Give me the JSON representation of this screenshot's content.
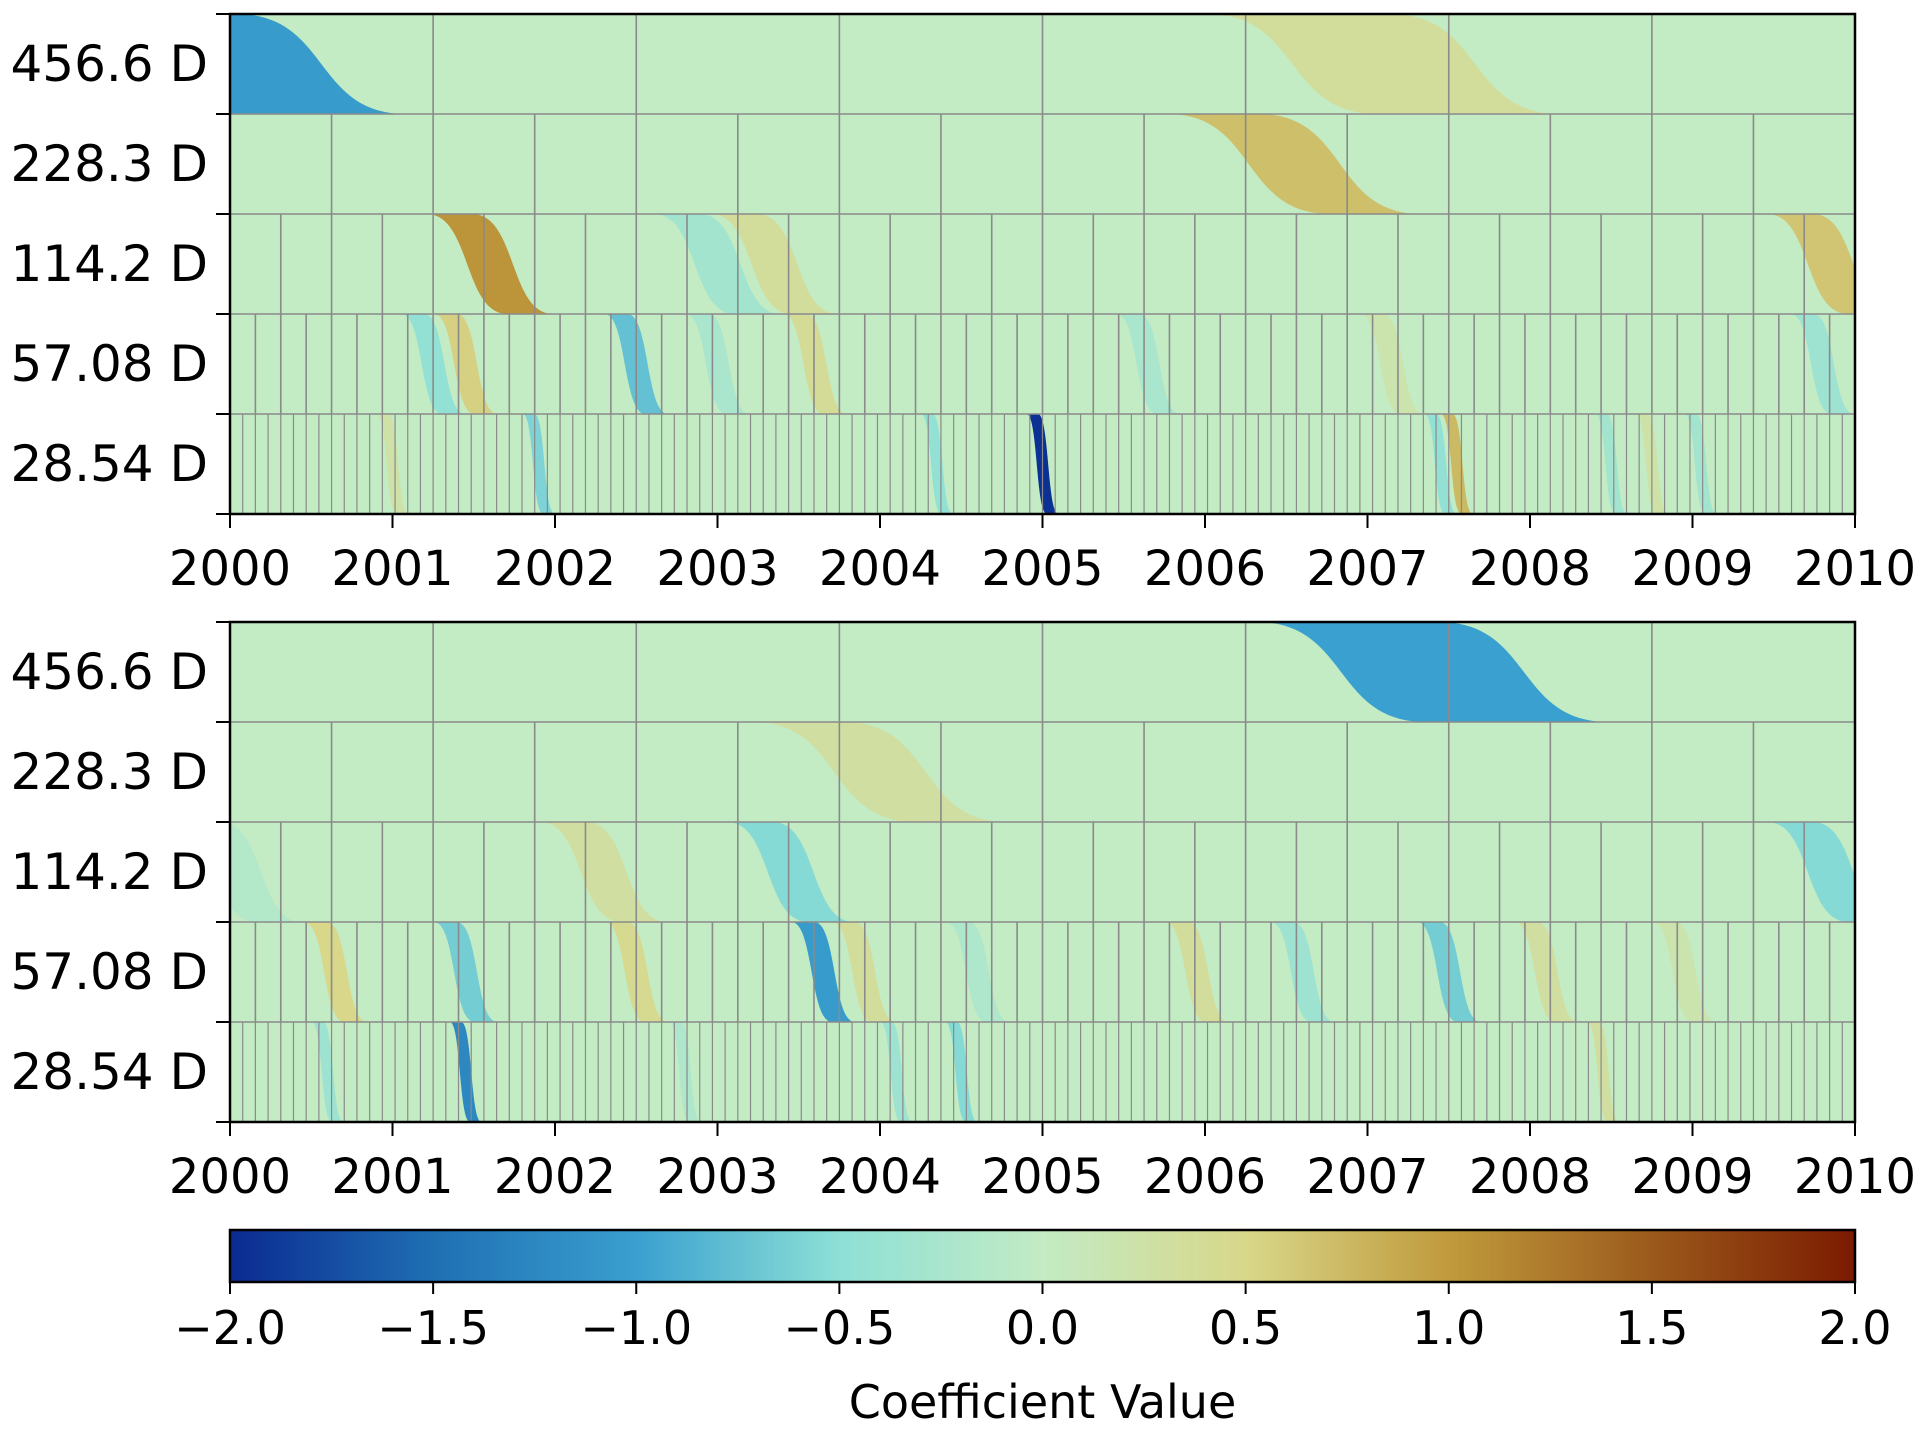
{
  "chart_data": [
    {
      "type": "heatmap",
      "title": "",
      "x_ticks": [
        "2000",
        "2001",
        "2002",
        "2003",
        "2004",
        "2005",
        "2006",
        "2007",
        "2008",
        "2009",
        "2010"
      ],
      "x_range": [
        2000,
        2010
      ],
      "levels": [
        {
          "label": "456.6 D",
          "segments": 8,
          "events": [
            {
              "t": 2000.0,
              "v": -1.05
            },
            {
              "t": 2007.1,
              "v": 0.35
            }
          ]
        },
        {
          "label": "228.3 D",
          "segments": 16,
          "events": [
            {
              "t": 2006.55,
              "v": 0.7
            }
          ]
        },
        {
          "label": "114.2 D",
          "segments": 32,
          "events": [
            {
              "t": 2001.6,
              "v": 1.05
            },
            {
              "t": 2003.0,
              "v": -0.3
            },
            {
              "t": 2003.35,
              "v": 0.35
            },
            {
              "t": 2009.85,
              "v": 0.65
            }
          ]
        },
        {
          "label": "57.08 D",
          "segments": 64,
          "events": [
            {
              "t": 2001.25,
              "v": -0.45
            },
            {
              "t": 2001.45,
              "v": 0.55
            },
            {
              "t": 2002.5,
              "v": -0.75
            },
            {
              "t": 2003.6,
              "v": 0.4
            },
            {
              "t": 2003.0,
              "v": -0.25
            },
            {
              "t": 2005.65,
              "v": -0.25
            },
            {
              "t": 2007.15,
              "v": 0.2
            },
            {
              "t": 2009.8,
              "v": -0.35
            }
          ]
        },
        {
          "label": "28.54 D",
          "segments": 128,
          "events": [
            {
              "t": 2001.0,
              "v": 0.25
            },
            {
              "t": 2001.9,
              "v": -0.6
            },
            {
              "t": 2004.35,
              "v": -0.45
            },
            {
              "t": 2005.0,
              "v": -1.95
            },
            {
              "t": 2007.45,
              "v": -0.45
            },
            {
              "t": 2007.55,
              "v": 0.75
            },
            {
              "t": 2008.5,
              "v": -0.3
            },
            {
              "t": 2008.75,
              "v": 0.25
            },
            {
              "t": 2009.05,
              "v": -0.3
            }
          ]
        }
      ]
    },
    {
      "type": "heatmap",
      "title": "",
      "x_ticks": [
        "2000",
        "2001",
        "2002",
        "2003",
        "2004",
        "2005",
        "2006",
        "2007",
        "2008",
        "2009",
        "2010"
      ],
      "x_range": [
        2000,
        2010
      ],
      "levels": [
        {
          "label": "456.6 D",
          "segments": 8,
          "events": [
            {
              "t": 2007.4,
              "v": -1.0
            }
          ]
        },
        {
          "label": "228.3 D",
          "segments": 16,
          "events": [
            {
              "t": 2004.0,
              "v": 0.3
            }
          ]
        },
        {
          "label": "114.2 D",
          "segments": 32,
          "events": [
            {
              "t": 2000.05,
              "v": -0.15
            },
            {
              "t": 2002.3,
              "v": 0.3
            },
            {
              "t": 2003.45,
              "v": -0.55
            },
            {
              "t": 2009.85,
              "v": -0.55
            }
          ]
        },
        {
          "label": "57.08 D",
          "segments": 64,
          "events": [
            {
              "t": 2000.65,
              "v": 0.5
            },
            {
              "t": 2001.45,
              "v": -0.65
            },
            {
              "t": 2002.5,
              "v": 0.45
            },
            {
              "t": 2003.65,
              "v": -1.05
            },
            {
              "t": 2003.9,
              "v": 0.35
            },
            {
              "t": 2005.95,
              "v": 0.35
            },
            {
              "t": 2006.6,
              "v": -0.35
            },
            {
              "t": 2007.5,
              "v": -0.65
            },
            {
              "t": 2008.1,
              "v": 0.3
            },
            {
              "t": 2008.95,
              "v": 0.2
            },
            {
              "t": 2004.6,
              "v": -0.2
            }
          ]
        },
        {
          "label": "28.54 D",
          "segments": 128,
          "events": [
            {
              "t": 2000.6,
              "v": -0.35
            },
            {
              "t": 2001.45,
              "v": -1.25
            },
            {
              "t": 2004.1,
              "v": -0.35
            },
            {
              "t": 2004.5,
              "v": -0.55
            },
            {
              "t": 2008.45,
              "v": 0.3
            },
            {
              "t": 2002.8,
              "v": -0.2
            }
          ]
        }
      ]
    }
  ],
  "colorbar": {
    "label": "Coefficient Value",
    "ticks": [
      "−2.0",
      "−1.5",
      "−1.0",
      "−0.5",
      "0.0",
      "0.5",
      "1.0",
      "1.5",
      "2.0"
    ],
    "range": [
      -2.0,
      2.0
    ],
    "colors": [
      "#0a2a91",
      "#1f6fb3",
      "#3aa0cf",
      "#8ee0d6",
      "#c3ebc4",
      "#d8d78a",
      "#c09a3c",
      "#9b5a1c",
      "#7b1a00"
    ]
  }
}
